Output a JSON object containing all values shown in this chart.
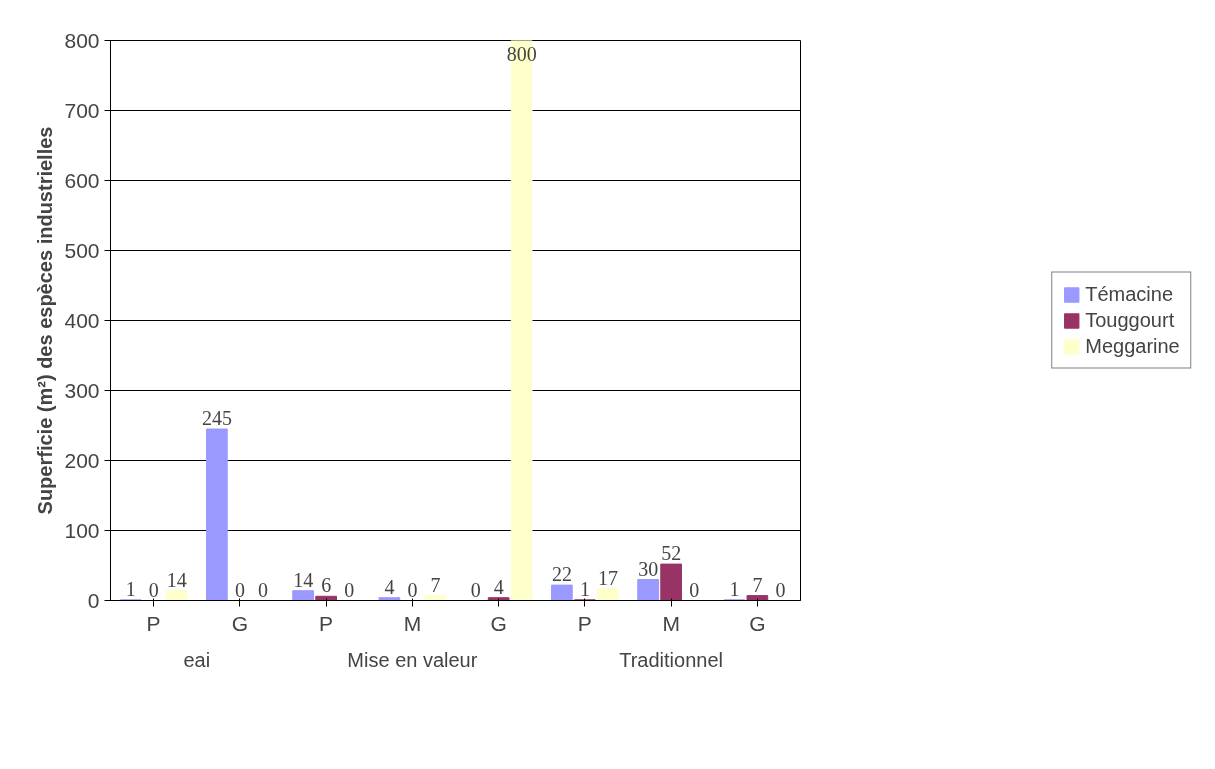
{
  "chart_data": {
    "type": "bar",
    "ylabel": "Superficie (m²) des espèces industrielles",
    "categories": [
      "P",
      "G",
      "P",
      "M",
      "G",
      "P",
      "M",
      "G"
    ],
    "annotations": [
      "eai",
      "Mise en valeur",
      "Traditionnel"
    ],
    "series": [
      {
        "name": "Témacine",
        "color": "#9999ff",
        "values": [
          1,
          245,
          14,
          4,
          0,
          22,
          30,
          1
        ]
      },
      {
        "name": "Touggourt",
        "color": "#993366",
        "values": [
          0,
          0,
          6,
          0,
          4,
          1,
          52,
          7
        ]
      },
      {
        "name": "Meggarine",
        "color": "#ffffcc",
        "values": [
          14,
          0,
          0,
          7,
          800,
          17,
          0,
          0
        ]
      }
    ],
    "ylim": [
      0,
      800
    ],
    "yticks": [
      0,
      100,
      200,
      300,
      400,
      500,
      600,
      700,
      800
    ],
    "grid": "y",
    "legend": "right",
    "data_labels": true
  }
}
